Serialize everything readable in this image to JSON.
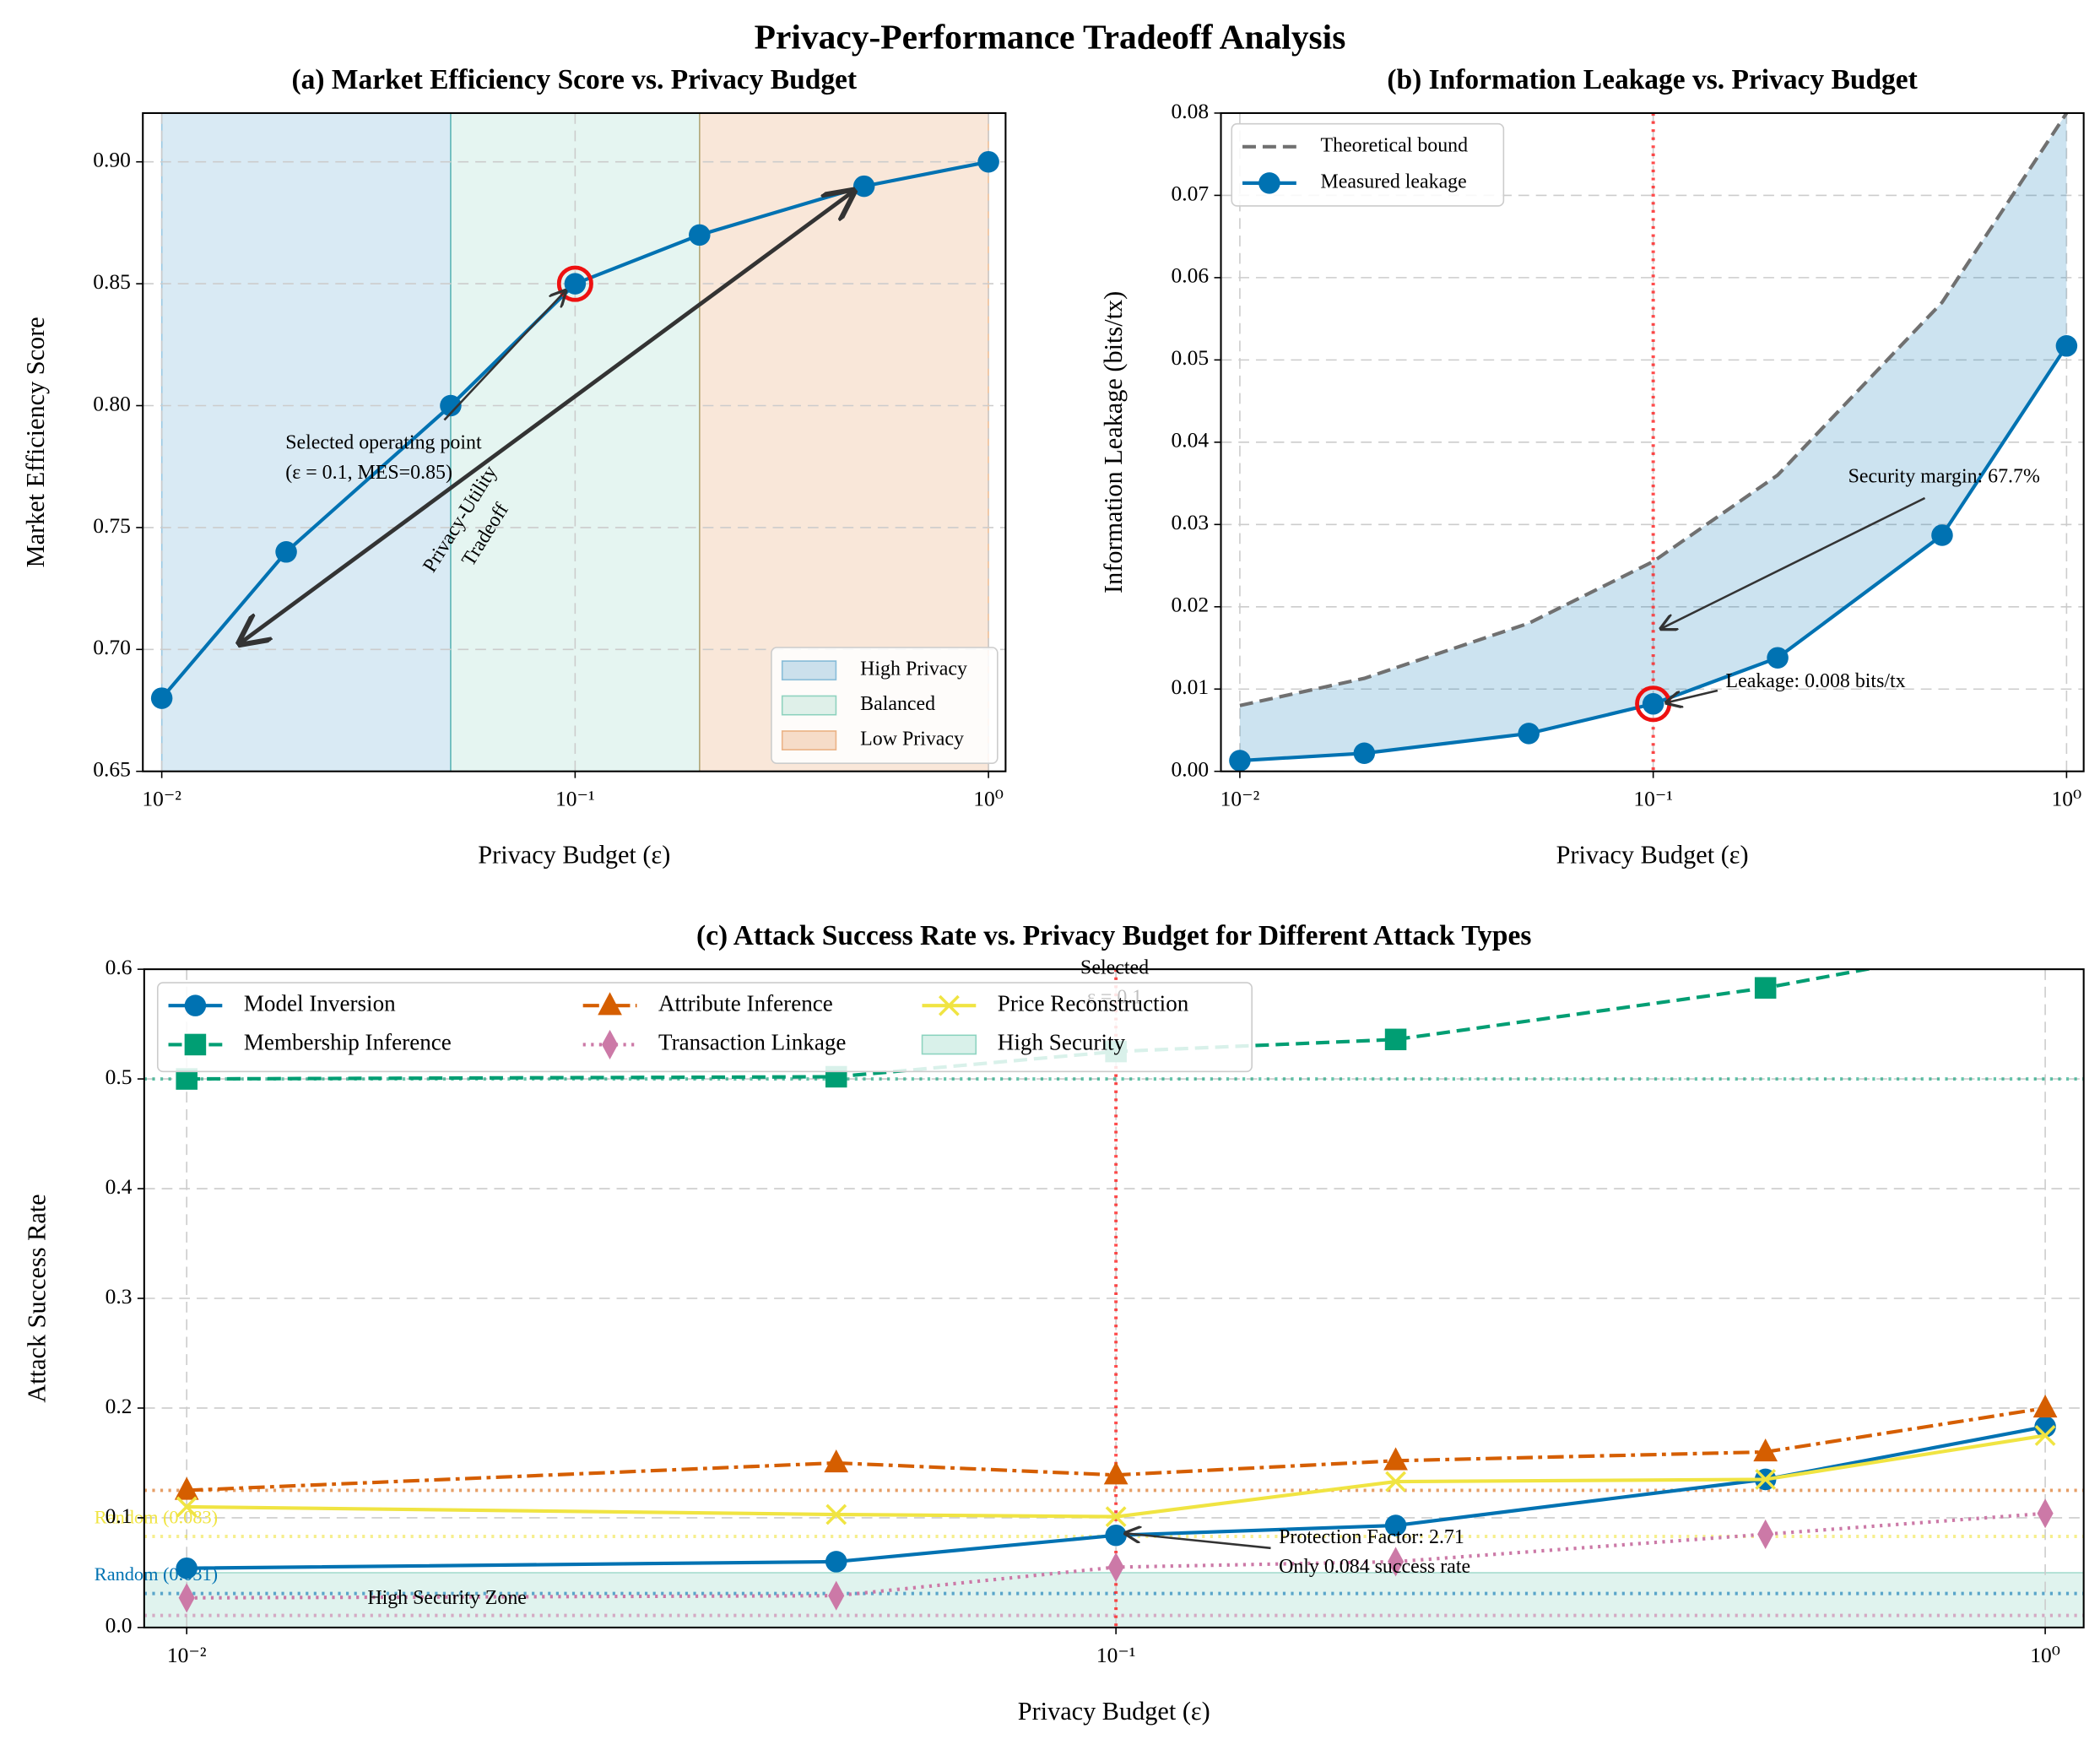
{
  "title": "Privacy-Performance Tradeoff Analysis",
  "chart_data": [
    {
      "type": "line",
      "title": "(a) Market Efficiency Score vs. Privacy Budget",
      "x_label": "Privacy Budget (ε)",
      "y_label": "Market Efficiency Score",
      "x_scale": "log",
      "xlim": [
        0.009,
        1.1
      ],
      "xticks": [
        {
          "value": 0.01,
          "label": "10⁻²"
        },
        {
          "value": 0.1,
          "label": "10⁻¹"
        },
        {
          "value": 1,
          "label": "10⁰"
        }
      ],
      "ylim": [
        0.65,
        0.92
      ],
      "yticks": [
        0.65,
        {
          "value": 0.7,
          "label": "0.70"
        },
        0.75,
        {
          "value": 0.8,
          "label": "0.80"
        },
        0.85,
        {
          "value": 0.9,
          "label": "0.90"
        }
      ],
      "grid": true,
      "legend": "lower right",
      "x": [
        0.01,
        0.02,
        0.05,
        0.1,
        0.2,
        0.5,
        1.0
      ],
      "series": [
        {
          "color": "#0072B2",
          "marker": "circle",
          "line_style": "solid",
          "values": [
            0.68,
            0.74,
            0.8,
            0.85,
            0.87,
            0.89,
            0.9
          ]
        }
      ],
      "highlight": {
        "series": 0,
        "index": 3,
        "color": "#ee1111"
      },
      "regions": [
        {
          "name": "High Privacy",
          "from": 0.01,
          "to": 0.05,
          "color": "#0072B2"
        },
        {
          "name": "Balanced",
          "from": 0.05,
          "to": 0.2,
          "color": "#009E73"
        },
        {
          "name": "Low Privacy",
          "from": 0.2,
          "to": 1.0,
          "color": "#D55E00"
        }
      ],
      "annotations": [
        {
          "text": [
            "Selected operating point",
            "(ε = 0.1, MES=0.85)"
          ]
        },
        {
          "text": [
            "Privacy-Utility",
            "Tradeoff"
          ]
        }
      ]
    },
    {
      "type": "line",
      "title": "(b) Information Leakage vs. Privacy Budget",
      "x_label": "Privacy Budget (ε)",
      "y_label": "Information Leakage (bits/tx)",
      "x_scale": "log",
      "xlim": [
        0.009,
        1.1
      ],
      "xticks": [
        {
          "value": 0.01,
          "label": "10⁻²"
        },
        {
          "value": 0.1,
          "label": "10⁻¹"
        },
        {
          "value": 1,
          "label": "10⁰"
        }
      ],
      "ylim": [
        0,
        0.08
      ],
      "yticks": [
        {
          "value": 0,
          "label": "0.00"
        },
        0.01,
        0.02,
        0.03,
        0.04,
        0.05,
        0.06,
        0.07,
        0.08
      ],
      "grid": true,
      "legend": "upper left",
      "x": [
        0.01,
        0.02,
        0.05,
        0.1,
        0.2,
        0.5,
        1.0
      ],
      "series": [
        {
          "name": "Theoretical bound",
          "color": "#707070",
          "marker": "none",
          "line_style": "dashed",
          "values": [
            0.008,
            0.0113,
            0.018,
            0.0255,
            0.036,
            0.057,
            0.08
          ]
        },
        {
          "name": "Measured leakage",
          "color": "#0072B2",
          "marker": "circle",
          "line_style": "solid",
          "values": [
            0.0013,
            0.0022,
            0.0046,
            0.0082,
            0.0138,
            0.0287,
            0.0517
          ]
        }
      ],
      "fill_between": {
        "series": [
          0,
          1
        ],
        "color": "#0072B2"
      },
      "vline": {
        "x": 0.1,
        "color": "#ff2020"
      },
      "highlight": {
        "series": 1,
        "index": 3,
        "color": "#ee1111"
      },
      "annotations": [
        {
          "text": [
            "Security margin: 67.7%"
          ]
        },
        {
          "text": [
            "Leakage: 0.008 bits/tx"
          ]
        }
      ]
    },
    {
      "type": "line",
      "title": "(c) Attack Success Rate vs. Privacy Budget for Different Attack Types",
      "x_label": "Privacy Budget (ε)",
      "y_label": "Attack Success Rate",
      "x_scale": "log",
      "xlim": [
        0.009,
        1.1
      ],
      "xticks": [
        {
          "value": 0.01,
          "label": "10⁻²"
        },
        {
          "value": 0.1,
          "label": "10⁻¹"
        },
        {
          "value": 1,
          "label": "10⁰"
        }
      ],
      "ylim": [
        0,
        0.6
      ],
      "yticks": [
        {
          "value": 0,
          "label": "0.0"
        },
        0.1,
        0.2,
        0.3,
        0.4,
        0.5,
        0.6
      ],
      "grid": true,
      "legend": "upper left",
      "x": [
        0.01,
        0.05,
        0.1,
        0.2,
        0.5,
        1.0
      ],
      "series": [
        {
          "name": "Model Inversion",
          "color": "#0072B2",
          "marker": "circle",
          "line_style": "solid",
          "values": [
            0.054,
            0.06,
            0.084,
            0.093,
            0.135,
            0.183
          ]
        },
        {
          "name": "Membership Inference",
          "color": "#009E73",
          "marker": "square",
          "line_style": "dashed",
          "values": [
            0.5,
            0.502,
            0.525,
            0.536,
            0.583,
            0.63
          ]
        },
        {
          "name": "Attribute Inference",
          "color": "#D55E00",
          "marker": "triangle",
          "line_style": "dashdot",
          "values": [
            0.125,
            0.15,
            0.139,
            0.152,
            0.16,
            0.2
          ]
        },
        {
          "name": "Transaction Linkage",
          "color": "#CC79A7",
          "marker": "diamond",
          "line_style": "dotted",
          "values": [
            0.027,
            0.029,
            0.055,
            0.06,
            0.085,
            0.104
          ]
        },
        {
          "name": "Price Reconstruction",
          "color": "#F0E442",
          "marker": "x",
          "line_style": "solid",
          "values": [
            0.11,
            0.103,
            0.101,
            0.133,
            0.135,
            0.175
          ]
        }
      ],
      "band": {
        "name": "High Security",
        "label": "High Security Zone",
        "from": 0,
        "to": 0.05,
        "color": "#009E73"
      },
      "reference_lines": [
        {
          "value": 0.5,
          "color": "#009E73"
        },
        {
          "value": 0.125,
          "color": "#D55E00"
        },
        {
          "value": 0.083,
          "color": "#F0E442",
          "label": "Random (0.083)"
        },
        {
          "value": 0.031,
          "color": "#0072B2",
          "label": "Random (0.031)"
        },
        {
          "value": 0.011,
          "color": "#CC79A7"
        }
      ],
      "vline": {
        "x": 0.1,
        "color": "#ff2020"
      },
      "annotations": [
        {
          "text": [
            "Selected",
            "ε = 0.1"
          ]
        },
        {
          "text": [
            "Protection Factor: 2.71",
            "Only 0.084 success rate"
          ]
        }
      ]
    }
  ]
}
